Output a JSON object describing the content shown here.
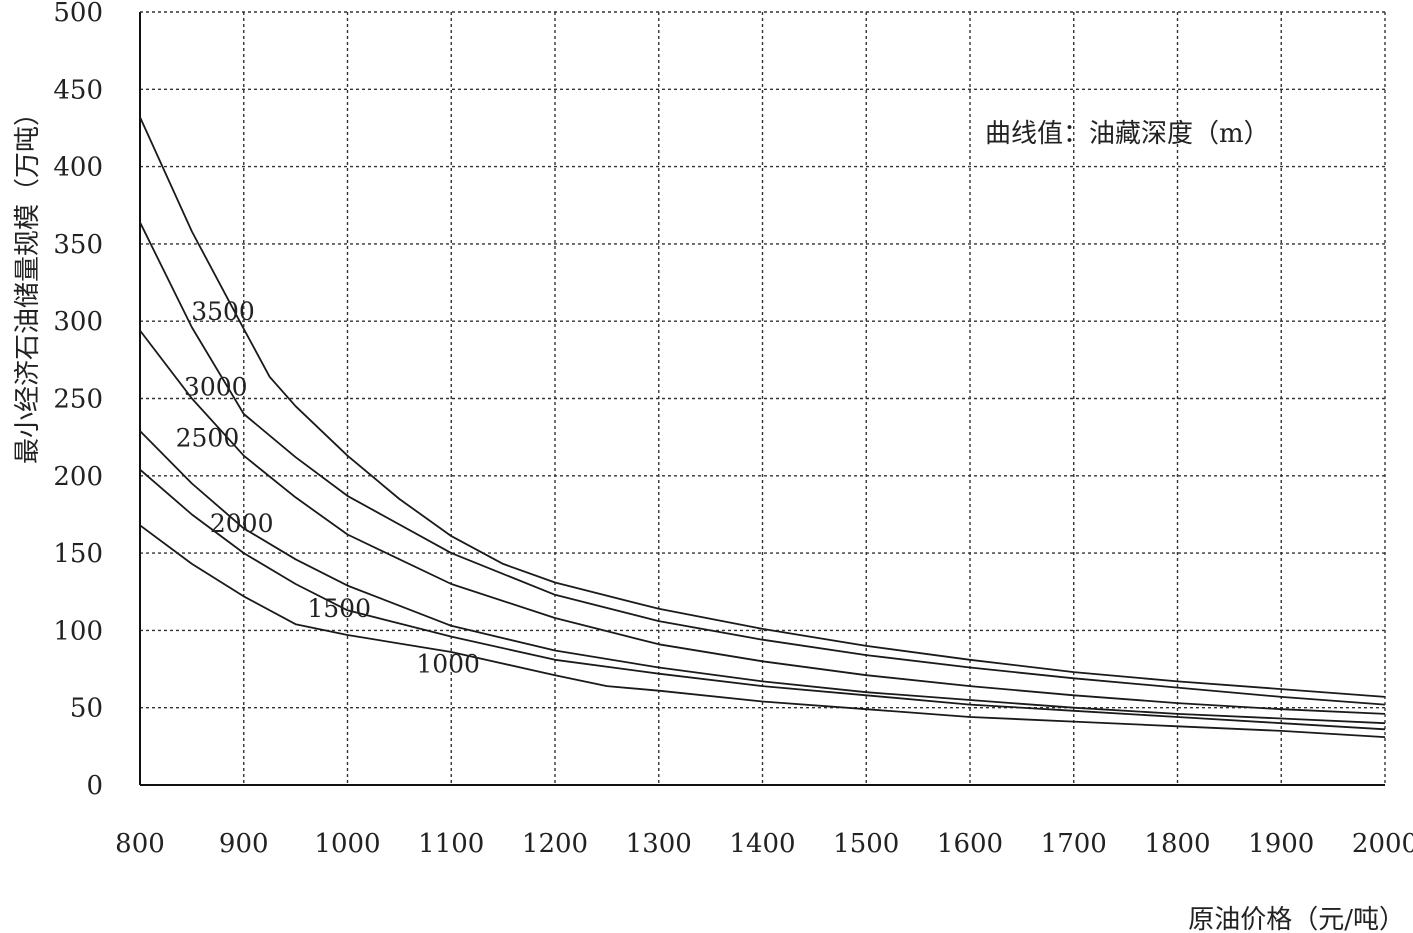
{
  "chart_data": {
    "type": "line",
    "title": "",
    "xlabel": "原油价格（元/吨）",
    "ylabel": "最小经济石油储量规模（万吨）",
    "annotation": "曲线值：油藏深度（m）",
    "xlim": [
      800,
      2000
    ],
    "ylim": [
      0,
      500
    ],
    "x_ticks": [
      "800",
      "900",
      "1000",
      "1100",
      "1200",
      "1300",
      "1400",
      "1500",
      "1600",
      "1700",
      "1800",
      "1900",
      "2000"
    ],
    "y_ticks": [
      "0",
      "50",
      "100",
      "150",
      "200",
      "250",
      "300",
      "350",
      "400",
      "450",
      "500"
    ],
    "grid": true,
    "legend": "none",
    "series": [
      {
        "name": "3500",
        "x": [
          800,
          850,
          900,
          925,
          950,
          1000,
          1050,
          1100,
          1150,
          1200,
          1300,
          1400,
          1500,
          1600,
          1700,
          1800,
          1900,
          2000
        ],
        "y": [
          432,
          358,
          295,
          264,
          245,
          213,
          185,
          161,
          143,
          131,
          114,
          101,
          90,
          81,
          73,
          67,
          62,
          57
        ]
      },
      {
        "name": "3000",
        "x": [
          800,
          850,
          900,
          950,
          1000,
          1100,
          1200,
          1300,
          1400,
          1500,
          1600,
          1700,
          1800,
          1900,
          2000
        ],
        "y": [
          364,
          296,
          240,
          212,
          187,
          150,
          123,
          106,
          94,
          84,
          76,
          69,
          63,
          57,
          52
        ]
      },
      {
        "name": "2500",
        "x": [
          800,
          850,
          900,
          950,
          1000,
          1100,
          1200,
          1300,
          1400,
          1500,
          1600,
          1700,
          1800,
          1900,
          2000
        ],
        "y": [
          294,
          250,
          213,
          186,
          162,
          130,
          108,
          91,
          80,
          71,
          64,
          58,
          53,
          49,
          46
        ]
      },
      {
        "name": "2000",
        "x": [
          800,
          850,
          900,
          950,
          1000,
          1100,
          1200,
          1300,
          1400,
          1500,
          1600,
          1700,
          1800,
          1900,
          2000
        ],
        "y": [
          229,
          195,
          166,
          146,
          129,
          103,
          87,
          76,
          67,
          60,
          55,
          50,
          46,
          43,
          40
        ]
      },
      {
        "name": "1500",
        "x": [
          800,
          850,
          900,
          950,
          1000,
          1100,
          1200,
          1300,
          1400,
          1500,
          1600,
          1700,
          1800,
          1900,
          2000
        ],
        "y": [
          204,
          175,
          150,
          130,
          113,
          96,
          81,
          72,
          64,
          58,
          52,
          48,
          44,
          40,
          36
        ]
      },
      {
        "name": "1000",
        "x": [
          800,
          850,
          900,
          950,
          1000,
          1100,
          1200,
          1250,
          1300,
          1400,
          1500,
          1600,
          1700,
          1800,
          1900,
          2000
        ],
        "y": [
          168,
          143,
          122,
          104,
          97,
          86,
          71,
          64,
          61,
          54,
          49,
          44,
          41,
          38,
          35,
          31
        ]
      }
    ]
  }
}
